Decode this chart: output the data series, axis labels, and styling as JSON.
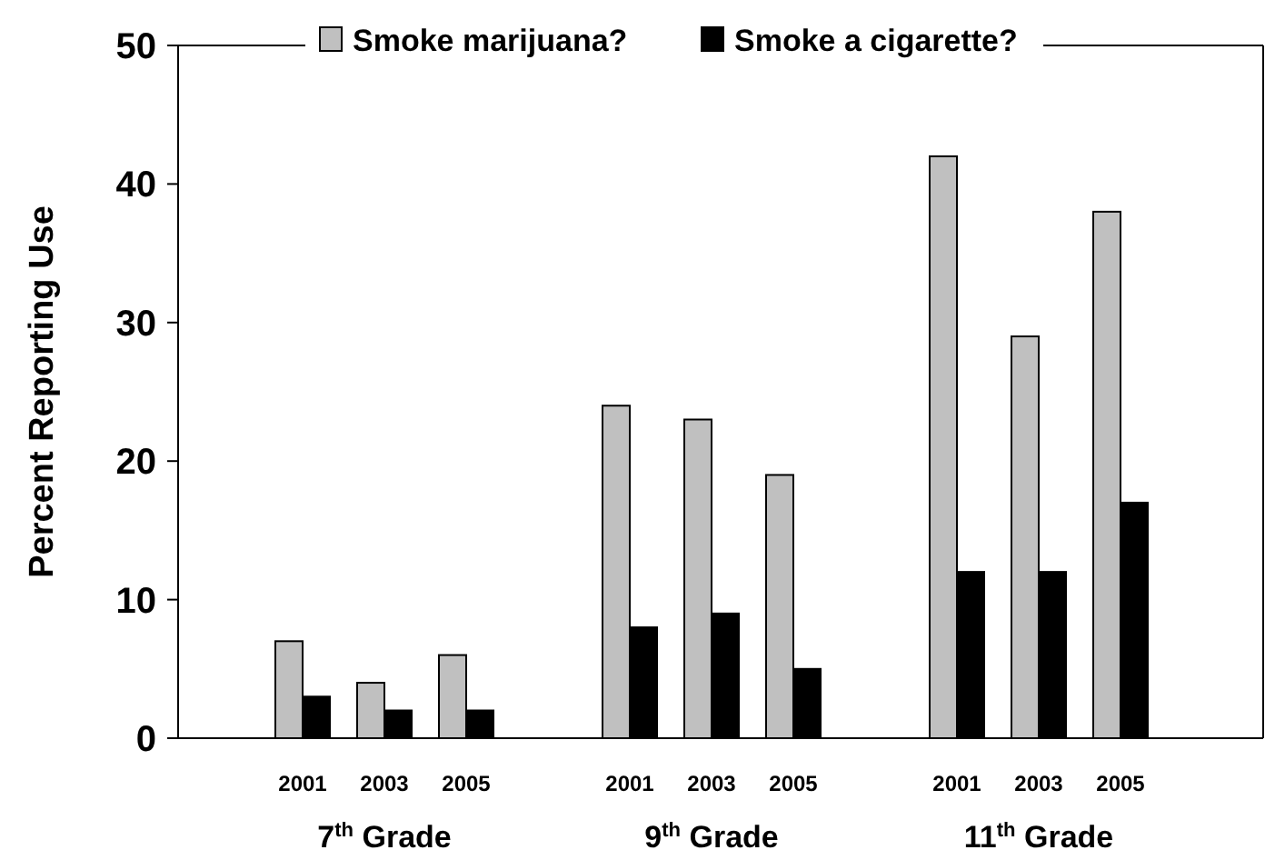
{
  "chart_data": {
    "type": "bar",
    "ylabel": "Percent Reporting Use",
    "categories": [
      "2001",
      "2003",
      "2005",
      null,
      "2001",
      "2003",
      "2005",
      null,
      "2001",
      "2003",
      "2005"
    ],
    "series": [
      {
        "name": "Smoke marijuana?",
        "color": "#c0c0c0",
        "values": [
          7,
          4,
          6,
          null,
          24,
          23,
          19,
          null,
          42,
          29,
          38
        ]
      },
      {
        "name": "Smoke a cigarette?",
        "color": "#000000",
        "values": [
          3,
          2,
          2,
          null,
          8,
          9,
          5,
          null,
          12,
          12,
          17
        ]
      }
    ],
    "ylim": [
      0,
      50
    ],
    "yticks": [
      0,
      10,
      20,
      30,
      40,
      50
    ],
    "grid": false,
    "legend": "top",
    "annotations": [
      "7$^{th}$ Grade",
      "9$^{th}$ Grade",
      "11$^{th}$ Grade"
    ]
  }
}
